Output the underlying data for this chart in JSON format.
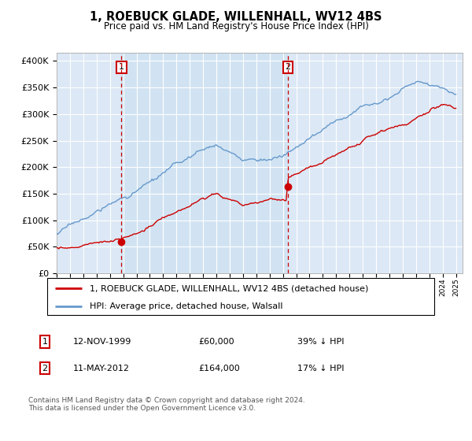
{
  "title": "1, ROEBUCK GLADE, WILLENHALL, WV12 4BS",
  "subtitle": "Price paid vs. HM Land Registry's House Price Index (HPI)",
  "background_color": "#ffffff",
  "plot_bg_color": "#dce8f5",
  "hpi_color": "#6699cc",
  "price_color": "#cc0000",
  "vline_color": "#cc0000",
  "yticks": [
    0,
    50000,
    100000,
    150000,
    200000,
    250000,
    300000,
    350000,
    400000
  ],
  "ytick_labels": [
    "£0",
    "£50K",
    "£100K",
    "£150K",
    "£200K",
    "£250K",
    "£300K",
    "£350K",
    "£400K"
  ],
  "sale1_year": 1999.87,
  "sale1_price": 60000,
  "sale1_label": "1",
  "sale2_year": 2012.37,
  "sale2_price": 164000,
  "sale2_label": "2",
  "legend_line1": "1, ROEBUCK GLADE, WILLENHALL, WV12 4BS (detached house)",
  "legend_line2": "HPI: Average price, detached house, Walsall",
  "table_row1_num": "1",
  "table_row1_date": "12-NOV-1999",
  "table_row1_price": "£60,000",
  "table_row1_hpi": "39% ↓ HPI",
  "table_row2_num": "2",
  "table_row2_date": "11-MAY-2012",
  "table_row2_price": "£164,000",
  "table_row2_hpi": "17% ↓ HPI",
  "footnote": "Contains HM Land Registry data © Crown copyright and database right 2024.\nThis data is licensed under the Open Government Licence v3.0."
}
